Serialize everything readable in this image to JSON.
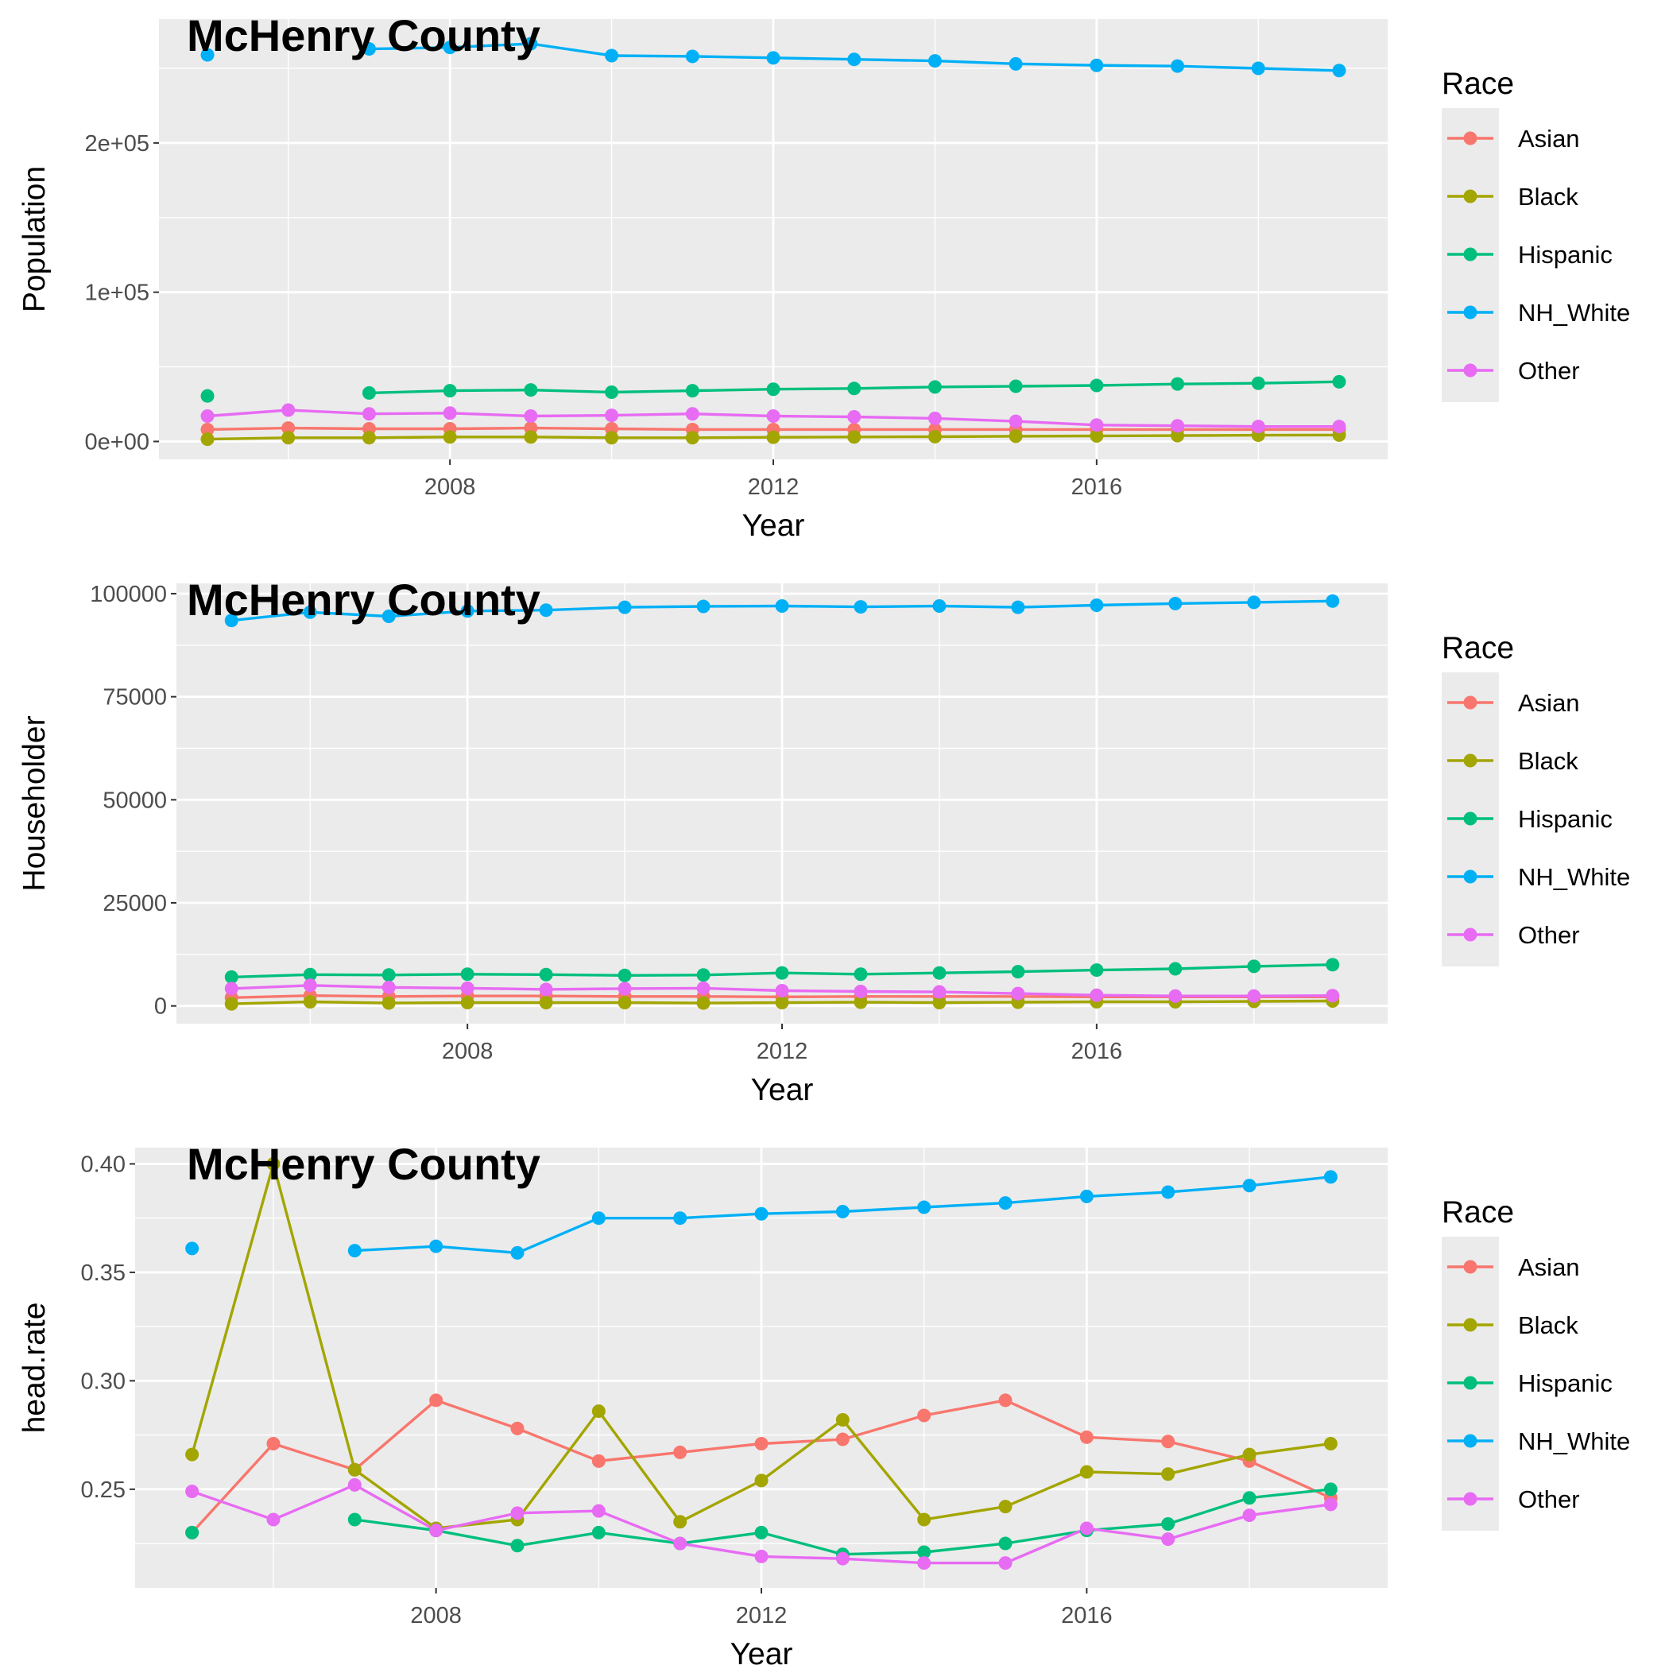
{
  "chart_data": [
    {
      "type": "line",
      "title": "McHenry County",
      "xlabel": "Year",
      "ylabel": "Population",
      "x": [
        2005,
        2006,
        2007,
        2008,
        2009,
        2010,
        2011,
        2012,
        2013,
        2014,
        2015,
        2016,
        2017,
        2018,
        2019
      ],
      "xlim": [
        2004.4,
        2019.6
      ],
      "ylim": [
        -12000,
        283000
      ],
      "xticks": [
        2008,
        2012,
        2016
      ],
      "xtick_labels": [
        "2008",
        "2012",
        "2016"
      ],
      "yticks": [
        0,
        100000,
        200000
      ],
      "ytick_labels": [
        "0e+00",
        "1e+05",
        "2e+05"
      ],
      "grid": true,
      "legend": {
        "title": "Race",
        "placement": "right"
      },
      "series": [
        {
          "name": "Asian",
          "color": "#F8766D",
          "values": [
            8000,
            9000,
            8500,
            8500,
            9000,
            8500,
            8000,
            8000,
            8000,
            8000,
            8000,
            8000,
            8000,
            8000,
            8000
          ]
        },
        {
          "name": "Black",
          "color": "#A3A500",
          "values": [
            1500,
            2500,
            2500,
            3000,
            3000,
            2500,
            2500,
            2800,
            3000,
            3200,
            3500,
            3700,
            3900,
            4200,
            4300
          ]
        },
        {
          "name": "Hispanic",
          "color": "#00BF7D",
          "values": [
            30500,
            null,
            32500,
            34000,
            34500,
            33000,
            34000,
            35000,
            35500,
            36500,
            37000,
            37500,
            38500,
            39000,
            40000
          ]
        },
        {
          "name": "NH_White",
          "color": "#00B0F6",
          "values": [
            259000,
            null,
            263000,
            264000,
            266500,
            258500,
            258000,
            257000,
            256000,
            255000,
            253000,
            252000,
            251500,
            250000,
            248500
          ]
        },
        {
          "name": "Other",
          "color": "#E76BF3",
          "values": [
            17000,
            21000,
            18500,
            19000,
            17000,
            17500,
            18500,
            17000,
            16500,
            15500,
            13500,
            11000,
            10500,
            10000,
            10000
          ]
        }
      ]
    },
    {
      "type": "line",
      "title": "McHenry County",
      "xlabel": "Year",
      "ylabel": "Householder",
      "x": [
        2005,
        2006,
        2007,
        2008,
        2009,
        2010,
        2011,
        2012,
        2013,
        2014,
        2015,
        2016,
        2017,
        2018,
        2019
      ],
      "xlim": [
        2004.3,
        2019.7
      ],
      "ylim": [
        -4300,
        102500
      ],
      "xticks": [
        2008,
        2012,
        2016
      ],
      "xtick_labels": [
        "2008",
        "2012",
        "2016"
      ],
      "yticks": [
        0,
        25000,
        50000,
        75000,
        100000
      ],
      "ytick_labels": [
        "0",
        "25000",
        "50000",
        "75000",
        "100000"
      ],
      "grid": true,
      "legend": {
        "title": "Race",
        "placement": "right"
      },
      "series": [
        {
          "name": "Asian",
          "color": "#F8766D",
          "values": [
            2000,
            2500,
            2300,
            2400,
            2400,
            2300,
            2300,
            2200,
            2300,
            2300,
            2300,
            2200,
            2200,
            2200,
            2200
          ]
        },
        {
          "name": "Black",
          "color": "#A3A500",
          "values": [
            500,
            1000,
            700,
            800,
            800,
            800,
            700,
            800,
            900,
            800,
            900,
            1000,
            1000,
            1100,
            1200
          ]
        },
        {
          "name": "Hispanic",
          "color": "#00BF7D",
          "values": [
            7000,
            7600,
            7500,
            7700,
            7600,
            7400,
            7500,
            8000,
            7700,
            8000,
            8300,
            8700,
            9000,
            9600,
            10000
          ]
        },
        {
          "name": "NH_White",
          "color": "#00B0F6",
          "values": [
            93500,
            95500,
            94500,
            95800,
            96000,
            96700,
            96900,
            97000,
            96800,
            97000,
            96700,
            97200,
            97600,
            97900,
            98200
          ]
        },
        {
          "name": "Other",
          "color": "#E76BF3",
          "values": [
            4200,
            5000,
            4500,
            4300,
            4000,
            4200,
            4300,
            3700,
            3500,
            3400,
            3000,
            2600,
            2400,
            2400,
            2500
          ]
        }
      ]
    },
    {
      "type": "line",
      "title": "McHenry County",
      "xlabel": "Year",
      "ylabel": "head.rate",
      "x": [
        2005,
        2006,
        2007,
        2008,
        2009,
        2010,
        2011,
        2012,
        2013,
        2014,
        2015,
        2016,
        2017,
        2018,
        2019
      ],
      "xlim": [
        2004.3,
        2019.7
      ],
      "ylim": [
        0.2045,
        0.4075
      ],
      "xticks": [
        2008,
        2012,
        2016
      ],
      "xtick_labels": [
        "2008",
        "2012",
        "2016"
      ],
      "yticks": [
        0.25,
        0.3,
        0.35,
        0.4
      ],
      "ytick_labels": [
        "0.25",
        "0.30",
        "0.35",
        "0.40"
      ],
      "grid": true,
      "legend": {
        "title": "Race",
        "placement": "right"
      },
      "series": [
        {
          "name": "Asian",
          "color": "#F8766D",
          "values": [
            0.23,
            0.271,
            0.259,
            0.291,
            0.278,
            0.263,
            0.267,
            0.271,
            0.273,
            0.284,
            0.291,
            0.274,
            0.272,
            0.263,
            0.246
          ]
        },
        {
          "name": "Black",
          "color": "#A3A500",
          "values": [
            0.266,
            0.4,
            0.259,
            0.232,
            0.236,
            0.286,
            0.235,
            0.254,
            0.282,
            0.236,
            0.242,
            0.258,
            0.257,
            0.266,
            0.271
          ]
        },
        {
          "name": "Hispanic",
          "color": "#00BF7D",
          "values": [
            0.23,
            null,
            0.236,
            0.231,
            0.224,
            0.23,
            0.225,
            0.23,
            0.22,
            0.221,
            0.225,
            0.231,
            0.234,
            0.246,
            0.25
          ]
        },
        {
          "name": "NH_White",
          "color": "#00B0F6",
          "values": [
            0.361,
            null,
            0.36,
            0.362,
            0.359,
            0.375,
            0.375,
            0.377,
            0.378,
            0.38,
            0.382,
            0.385,
            0.387,
            0.39,
            0.394
          ]
        },
        {
          "name": "Other",
          "color": "#E76BF3",
          "values": [
            0.249,
            0.236,
            0.252,
            0.231,
            0.239,
            0.24,
            0.225,
            0.219,
            0.218,
            0.216,
            0.216,
            0.232,
            0.227,
            0.238,
            0.243
          ]
        }
      ]
    }
  ]
}
